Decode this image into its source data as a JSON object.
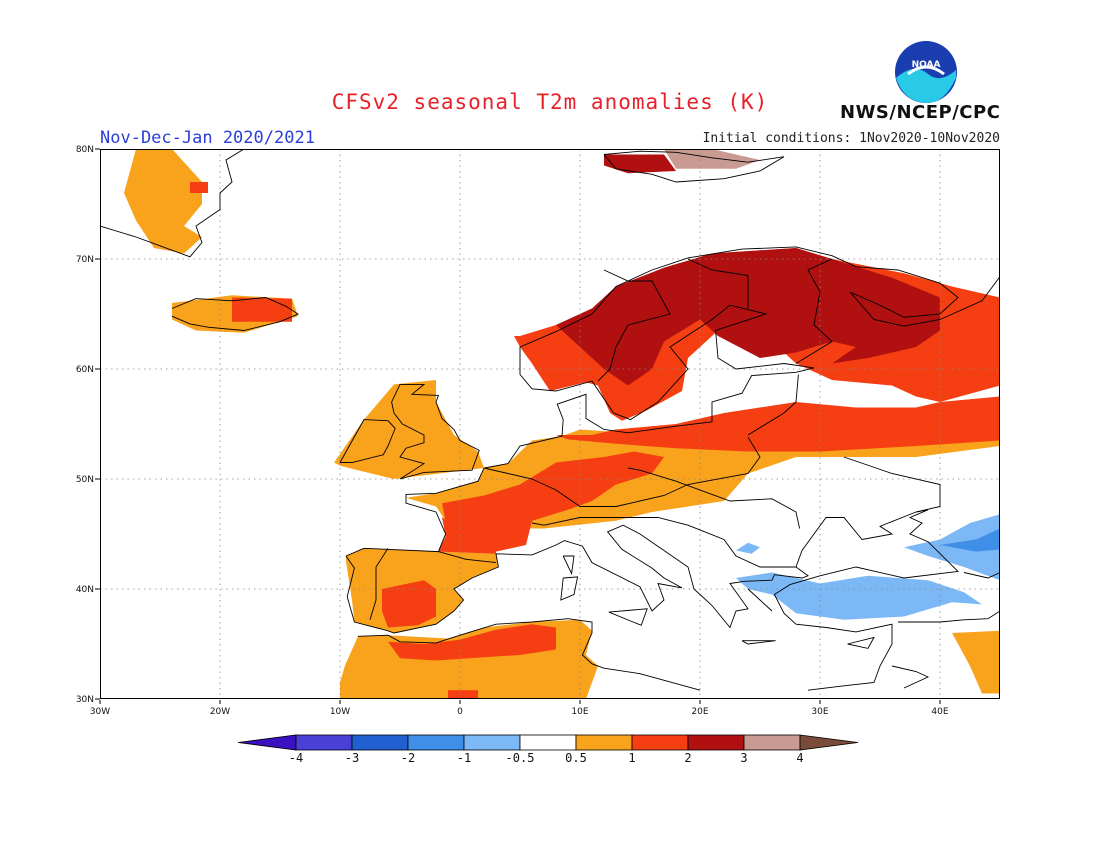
{
  "title": "CFSv2 seasonal T2m anomalies (K)",
  "agency": "NWS/NCEP/CPC",
  "logo_text": "NOAA",
  "season": "Nov-Dec-Jan 2020/2021",
  "initial_conditions": "Initial conditions: 1Nov2020-10Nov2020",
  "map": {
    "lon_range": [
      -30,
      45
    ],
    "lat_range": [
      30,
      80
    ],
    "gridlines": true,
    "x_ticks": [
      "30W",
      "20W",
      "10W",
      "0",
      "10E",
      "20E",
      "30E",
      "40E"
    ],
    "y_ticks": [
      "30N",
      "40N",
      "50N",
      "60N",
      "70N",
      "80N"
    ],
    "ocean_color": "#ffffff",
    "land_outline_color": "#000000"
  },
  "legend": {
    "labels": [
      "-4",
      "-3",
      "-2",
      "-1",
      "-0.5",
      "0.5",
      "1",
      "2",
      "3",
      "4"
    ],
    "colors": [
      "#3a10c0",
      "#4a3fd6",
      "#1f5fd0",
      "#3f8ee8",
      "#7bb8f5",
      "#ffffff",
      "#f9a21c",
      "#f53f12",
      "#b01010",
      "#c89a92",
      "#7a4a3a"
    ]
  }
}
